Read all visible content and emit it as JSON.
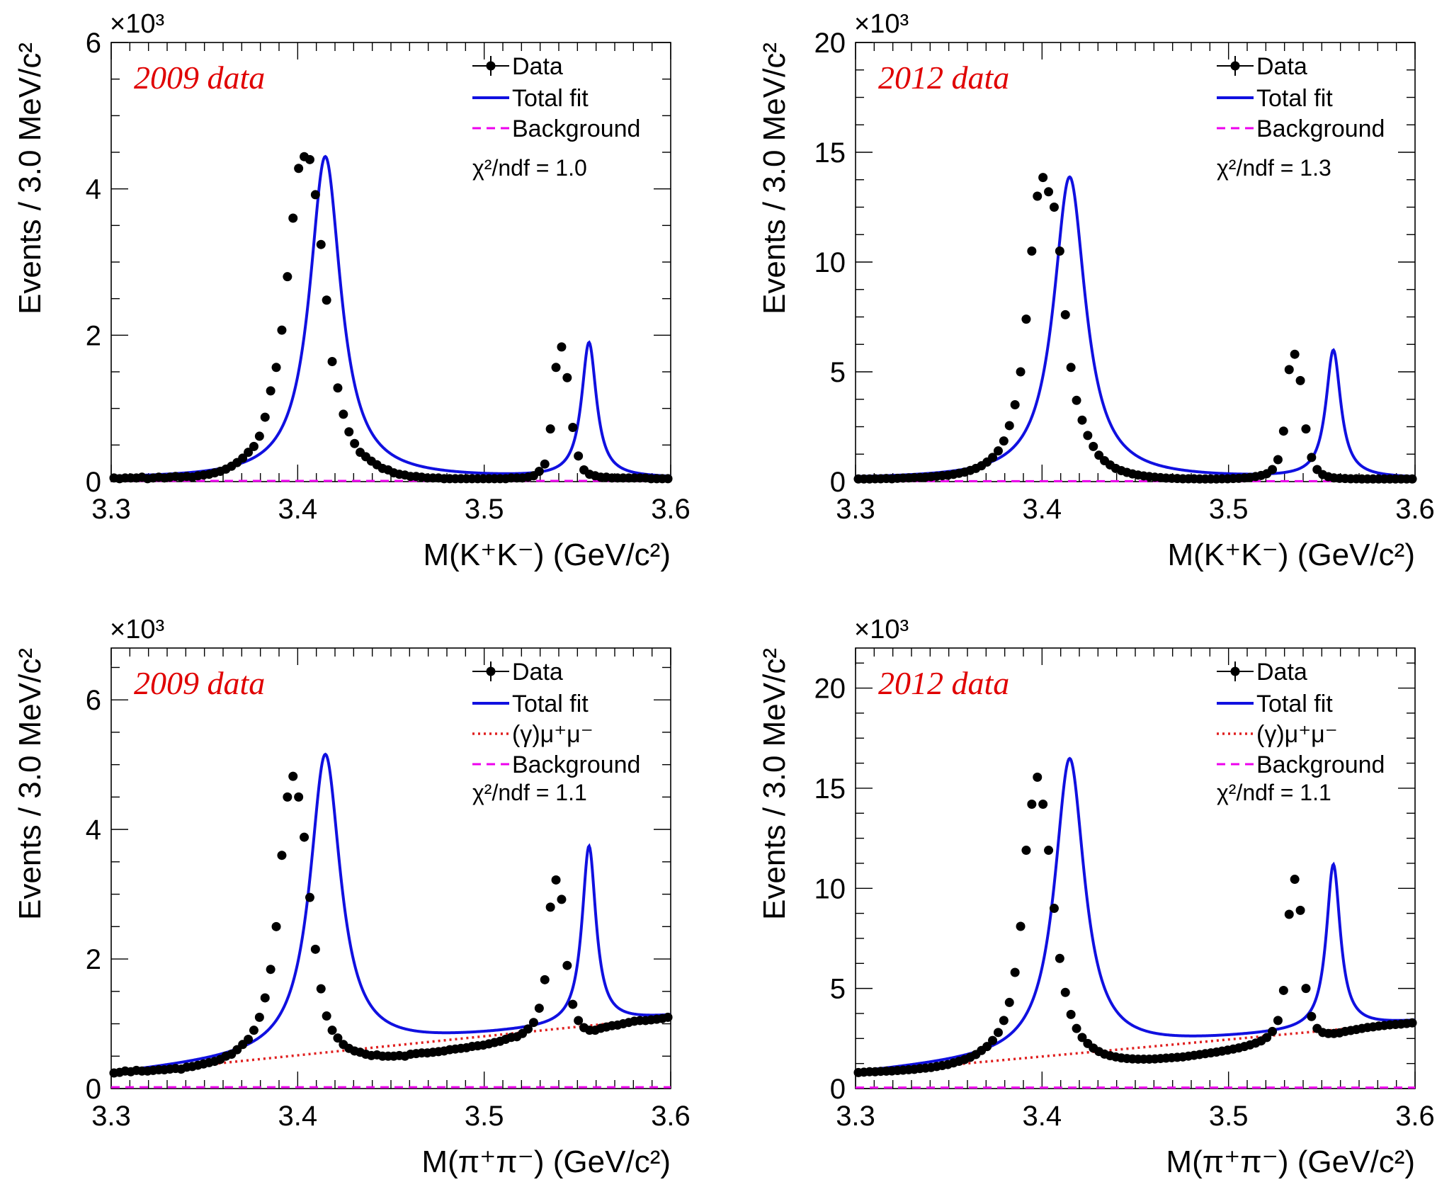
{
  "figure": {
    "panel_count": 4
  },
  "colors": {
    "data": "#000000",
    "total_fit": "#1010e0",
    "background": "#ee00ee",
    "mumu": "#e02020",
    "tag": "#e00000",
    "axis": "#000000"
  },
  "chart_data": [
    {
      "type": "scatter",
      "panel": "top-left",
      "tag": "2009 data",
      "xlabel": "M(K⁺K⁻) (GeV/c²)",
      "ylabel": "Events / 3.0 MeV/c²",
      "y_multiplier": "×10³",
      "xlim": [
        3.3,
        3.6
      ],
      "ylim": [
        0,
        6.0
      ],
      "x_ticks": [
        "3.3",
        "3.4",
        "3.5",
        "3.6"
      ],
      "y_ticks": [
        {
          "v": 0,
          "l": "0"
        },
        {
          "v": 2,
          "l": "2"
        },
        {
          "v": 4,
          "l": "4"
        },
        {
          "v": 6,
          "l": "6"
        }
      ],
      "legend_position": "top-right",
      "legend": [
        "Data",
        "Total fit",
        "Background"
      ],
      "chi2": "χ²/ndf = 1.0",
      "model": {
        "peak1": {
          "mu": 3.4148,
          "gamma": 0.0101,
          "amp": 4.4
        },
        "peak2": {
          "mu": 3.5562,
          "gamma": 0.0048,
          "amp": 1.84
        },
        "baseline": [
          0.04,
          0.04
        ],
        "background": 0.01
      },
      "series": [
        {
          "name": "Data",
          "x_range": [
            3.3,
            3.6
          ],
          "bin_width": 0.003,
          "y": [
            0.05,
            0.04,
            0.05,
            0.05,
            0.05,
            0.06,
            0.04,
            0.05,
            0.06,
            0.05,
            0.06,
            0.07,
            0.06,
            0.07,
            0.06,
            0.08,
            0.09,
            0.1,
            0.12,
            0.14,
            0.17,
            0.21,
            0.26,
            0.32,
            0.4,
            0.48,
            0.62,
            0.88,
            1.24,
            1.56,
            2.07,
            2.8,
            3.6,
            4.28,
            4.44,
            4.4,
            3.92,
            3.24,
            2.48,
            1.64,
            1.28,
            0.92,
            0.68,
            0.52,
            0.4,
            0.34,
            0.28,
            0.23,
            0.18,
            0.16,
            0.12,
            0.1,
            0.09,
            0.07,
            0.07,
            0.06,
            0.05,
            0.05,
            0.05,
            0.04,
            0.04,
            0.04,
            0.04,
            0.04,
            0.04,
            0.04,
            0.04,
            0.04,
            0.04,
            0.04,
            0.04,
            0.05,
            0.05,
            0.05,
            0.06,
            0.08,
            0.14,
            0.24,
            0.72,
            1.56,
            1.84,
            1.42,
            0.74,
            0.35,
            0.16,
            0.1,
            0.08,
            0.06,
            0.06,
            0.05,
            0.05,
            0.05,
            0.05,
            0.05,
            0.05,
            0.05,
            0.04,
            0.04,
            0.04,
            0.04
          ]
        }
      ]
    },
    {
      "type": "scatter",
      "panel": "top-right",
      "tag": "2012 data",
      "xlabel": "M(K⁺K⁻) (GeV/c²)",
      "ylabel": "Events / 3.0 MeV/c²",
      "y_multiplier": "×10³",
      "xlim": [
        3.3,
        3.6
      ],
      "ylim": [
        0,
        20.0
      ],
      "x_ticks": [
        "3.3",
        "3.4",
        "3.5",
        "3.6"
      ],
      "y_ticks": [
        {
          "v": 0,
          "l": "0"
        },
        {
          "v": 5,
          "l": "5"
        },
        {
          "v": 10,
          "l": "10"
        },
        {
          "v": 15,
          "l": "15"
        },
        {
          "v": 20,
          "l": "20"
        }
      ],
      "legend_position": "top-right",
      "legend": [
        "Data",
        "Total fit",
        "Background"
      ],
      "chi2": "χ²/ndf = 1.3",
      "model": {
        "peak1": {
          "mu": 3.4148,
          "gamma": 0.0103,
          "amp": 13.75
        },
        "peak2": {
          "mu": 3.5562,
          "gamma": 0.0048,
          "amp": 5.8
        },
        "baseline": [
          0.12,
          0.12
        ],
        "background": 0.02
      },
      "series": [
        {
          "name": "Data",
          "x_range": [
            3.3,
            3.6
          ],
          "bin_width": 0.003,
          "y": [
            0.12,
            0.12,
            0.12,
            0.13,
            0.13,
            0.14,
            0.13,
            0.15,
            0.16,
            0.17,
            0.18,
            0.19,
            0.2,
            0.22,
            0.24,
            0.27,
            0.29,
            0.33,
            0.38,
            0.43,
            0.51,
            0.6,
            0.72,
            0.89,
            1.1,
            1.4,
            1.85,
            2.55,
            3.5,
            5.0,
            7.4,
            10.5,
            13.0,
            13.85,
            13.2,
            12.5,
            10.5,
            7.6,
            5.2,
            3.7,
            2.8,
            2.1,
            1.6,
            1.2,
            0.95,
            0.76,
            0.6,
            0.5,
            0.42,
            0.35,
            0.3,
            0.26,
            0.23,
            0.2,
            0.18,
            0.16,
            0.15,
            0.14,
            0.13,
            0.13,
            0.13,
            0.12,
            0.12,
            0.12,
            0.12,
            0.13,
            0.13,
            0.14,
            0.15,
            0.17,
            0.19,
            0.23,
            0.28,
            0.36,
            0.55,
            1.0,
            2.3,
            5.1,
            5.8,
            4.6,
            2.4,
            1.1,
            0.55,
            0.32,
            0.22,
            0.17,
            0.15,
            0.14,
            0.13,
            0.13,
            0.12,
            0.12,
            0.12,
            0.12,
            0.12,
            0.12,
            0.12,
            0.12,
            0.12,
            0.12
          ]
        }
      ]
    },
    {
      "type": "scatter",
      "panel": "bottom-left",
      "tag": "2009 data",
      "xlabel": "M(π⁺π⁻) (GeV/c²)",
      "ylabel": "Events / 3.0 MeV/c²",
      "y_multiplier": "×10³",
      "xlim": [
        3.3,
        3.6
      ],
      "ylim": [
        0,
        6.8
      ],
      "x_ticks": [
        "3.3",
        "3.4",
        "3.5",
        "3.6"
      ],
      "y_ticks": [
        {
          "v": 0,
          "l": "0"
        },
        {
          "v": 2,
          "l": "2"
        },
        {
          "v": 4,
          "l": "4"
        },
        {
          "v": 6,
          "l": "6"
        }
      ],
      "legend_position": "top-right",
      "legend": [
        "Data",
        "Total fit",
        "(γ)μ⁺μ⁻",
        "Background"
      ],
      "chi2": "χ²/ndf = 1.1",
      "model": {
        "peak1": {
          "mu": 3.4148,
          "gamma": 0.0099,
          "amp": 4.6
        },
        "peak2": {
          "mu": 3.5562,
          "gamma": 0.0045,
          "amp": 2.75
        },
        "baseline": [
          0.22,
          1.1
        ],
        "background": 0.02
      },
      "series": [
        {
          "name": "Data",
          "x_range": [
            3.3,
            3.6
          ],
          "bin_width": 0.003,
          "y": [
            0.24,
            0.25,
            0.27,
            0.26,
            0.28,
            0.27,
            0.27,
            0.28,
            0.29,
            0.29,
            0.3,
            0.31,
            0.3,
            0.33,
            0.34,
            0.36,
            0.38,
            0.4,
            0.42,
            0.45,
            0.5,
            0.53,
            0.6,
            0.68,
            0.76,
            0.9,
            1.1,
            1.4,
            1.84,
            2.5,
            3.6,
            4.5,
            4.82,
            4.5,
            3.88,
            2.95,
            2.15,
            1.54,
            1.12,
            0.9,
            0.78,
            0.68,
            0.62,
            0.58,
            0.56,
            0.53,
            0.51,
            0.52,
            0.5,
            0.5,
            0.5,
            0.51,
            0.5,
            0.53,
            0.54,
            0.55,
            0.55,
            0.56,
            0.57,
            0.58,
            0.6,
            0.61,
            0.62,
            0.63,
            0.65,
            0.66,
            0.67,
            0.69,
            0.71,
            0.73,
            0.76,
            0.79,
            0.8,
            0.85,
            0.92,
            1.02,
            1.24,
            1.68,
            2.8,
            3.22,
            2.92,
            1.9,
            1.3,
            1.05,
            0.94,
            0.9,
            0.9,
            0.93,
            0.95,
            0.97,
            0.98,
            1.0,
            1.02,
            1.04,
            1.05,
            1.05,
            1.06,
            1.07,
            1.08,
            1.1
          ]
        }
      ]
    },
    {
      "type": "scatter",
      "panel": "bottom-right",
      "tag": "2012 data",
      "xlabel": "M(π⁺π⁻) (GeV/c²)",
      "ylabel": "Events / 3.0 MeV/c²",
      "y_multiplier": "×10³",
      "xlim": [
        3.3,
        3.6
      ],
      "ylim": [
        0,
        22.0
      ],
      "x_ticks": [
        "3.3",
        "3.4",
        "3.5",
        "3.6"
      ],
      "y_ticks": [
        {
          "v": 0,
          "l": "0"
        },
        {
          "v": 5,
          "l": "5"
        },
        {
          "v": 10,
          "l": "10"
        },
        {
          "v": 15,
          "l": "15"
        },
        {
          "v": 20,
          "l": "20"
        }
      ],
      "legend_position": "top-right",
      "legend": [
        "Data",
        "Total fit",
        "(γ)μ⁺μ⁻",
        "Background"
      ],
      "chi2": "χ²/ndf = 1.1",
      "model": {
        "peak1": {
          "mu": 3.4148,
          "gamma": 0.0097,
          "amp": 14.75
        },
        "peak2": {
          "mu": 3.5562,
          "gamma": 0.0045,
          "amp": 8.2
        },
        "baseline": [
          0.75,
          3.3
        ],
        "background": 0.05
      },
      "series": [
        {
          "name": "Data",
          "x_range": [
            3.3,
            3.6
          ],
          "bin_width": 0.003,
          "y": [
            0.8,
            0.82,
            0.84,
            0.84,
            0.86,
            0.87,
            0.88,
            0.9,
            0.92,
            0.94,
            0.96,
            1.0,
            1.02,
            1.05,
            1.1,
            1.15,
            1.2,
            1.28,
            1.36,
            1.45,
            1.56,
            1.7,
            1.9,
            2.1,
            2.4,
            2.8,
            3.4,
            4.3,
            5.8,
            8.1,
            11.9,
            14.2,
            15.55,
            14.2,
            11.9,
            9.0,
            6.5,
            4.8,
            3.7,
            3.0,
            2.55,
            2.25,
            2.02,
            1.85,
            1.72,
            1.64,
            1.58,
            1.53,
            1.5,
            1.48,
            1.47,
            1.47,
            1.47,
            1.48,
            1.5,
            1.52,
            1.54,
            1.56,
            1.58,
            1.62,
            1.66,
            1.7,
            1.74,
            1.78,
            1.82,
            1.87,
            1.92,
            1.97,
            2.03,
            2.1,
            2.18,
            2.27,
            2.38,
            2.55,
            2.85,
            3.4,
            4.9,
            8.7,
            10.45,
            8.9,
            5.0,
            3.6,
            3.0,
            2.8,
            2.75,
            2.75,
            2.78,
            2.85,
            2.9,
            2.95,
            3.0,
            3.05,
            3.08,
            3.12,
            3.15,
            3.18,
            3.2,
            3.22,
            3.25,
            3.28
          ]
        }
      ]
    }
  ]
}
